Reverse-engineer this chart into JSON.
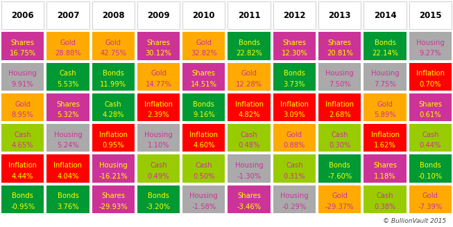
{
  "years": [
    "2006",
    "2007",
    "2008",
    "2009",
    "2010",
    "2011",
    "2012",
    "2013",
    "2014",
    "2015"
  ],
  "table": [
    [
      {
        "label": "Shares",
        "value": "16.75%",
        "bg": "#CC3399",
        "fg": "#FFFF00"
      },
      {
        "label": "Gold",
        "value": "28.88%",
        "bg": "#FFAA00",
        "fg": "#CC3399"
      },
      {
        "label": "Gold",
        "value": "42.75%",
        "bg": "#FFAA00",
        "fg": "#CC3399"
      },
      {
        "label": "Shares",
        "value": "30.12%",
        "bg": "#CC3399",
        "fg": "#FFFF00"
      },
      {
        "label": "Gold",
        "value": "32.82%",
        "bg": "#FFAA00",
        "fg": "#CC3399"
      },
      {
        "label": "Bonds",
        "value": "22.82%",
        "bg": "#009933",
        "fg": "#FFFF00"
      },
      {
        "label": "Shares",
        "value": "12.30%",
        "bg": "#CC3399",
        "fg": "#FFFF00"
      },
      {
        "label": "Shares",
        "value": "20.81%",
        "bg": "#CC3399",
        "fg": "#FFFF00"
      },
      {
        "label": "Bonds",
        "value": "22.14%",
        "bg": "#009933",
        "fg": "#FFFF00"
      },
      {
        "label": "Housing",
        "value": "9.27%",
        "bg": "#AAAAAA",
        "fg": "#CC3399"
      }
    ],
    [
      {
        "label": "Housing",
        "value": "9.91%",
        "bg": "#AAAAAA",
        "fg": "#CC3399"
      },
      {
        "label": "Cash",
        "value": "5.53%",
        "bg": "#009933",
        "fg": "#FFFF00"
      },
      {
        "label": "Bonds",
        "value": "11.99%",
        "bg": "#009933",
        "fg": "#FFFF00"
      },
      {
        "label": "Gold",
        "value": "14.77%",
        "bg": "#FFAA00",
        "fg": "#CC3399"
      },
      {
        "label": "Shares",
        "value": "14.51%",
        "bg": "#CC3399",
        "fg": "#FFFF00"
      },
      {
        "label": "Gold",
        "value": "12.28%",
        "bg": "#FFAA00",
        "fg": "#CC3399"
      },
      {
        "label": "Bonds",
        "value": "3.73%",
        "bg": "#009933",
        "fg": "#FFFF00"
      },
      {
        "label": "Housing",
        "value": "7.50%",
        "bg": "#AAAAAA",
        "fg": "#CC3399"
      },
      {
        "label": "Housing",
        "value": "7.75%",
        "bg": "#AAAAAA",
        "fg": "#CC3399"
      },
      {
        "label": "Inflation",
        "value": "0.70%",
        "bg": "#FF0000",
        "fg": "#FFFF00"
      }
    ],
    [
      {
        "label": "Gold",
        "value": "8.95%",
        "bg": "#FFAA00",
        "fg": "#CC3399"
      },
      {
        "label": "Shares",
        "value": "5.32%",
        "bg": "#CC3399",
        "fg": "#FFFF00"
      },
      {
        "label": "Cash",
        "value": "4.28%",
        "bg": "#009933",
        "fg": "#FFFF00"
      },
      {
        "label": "Inflation",
        "value": "2.39%",
        "bg": "#FF0000",
        "fg": "#FFFF00"
      },
      {
        "label": "Bonds",
        "value": "9.16%",
        "bg": "#009933",
        "fg": "#FFFF00"
      },
      {
        "label": "Inflation",
        "value": "4.82%",
        "bg": "#FF0000",
        "fg": "#FFFF00"
      },
      {
        "label": "Inflation",
        "value": "3.09%",
        "bg": "#FF0000",
        "fg": "#FFFF00"
      },
      {
        "label": "Inflation",
        "value": "2.68%",
        "bg": "#FF0000",
        "fg": "#FFFF00"
      },
      {
        "label": "Gold",
        "value": "5.89%",
        "bg": "#FFAA00",
        "fg": "#CC3399"
      },
      {
        "label": "Shares",
        "value": "0.61%",
        "bg": "#CC3399",
        "fg": "#FFFF00"
      }
    ],
    [
      {
        "label": "Cash",
        "value": "4.65%",
        "bg": "#99CC00",
        "fg": "#CC3399"
      },
      {
        "label": "Housing",
        "value": "5.24%",
        "bg": "#AAAAAA",
        "fg": "#CC3399"
      },
      {
        "label": "Inflation",
        "value": "0.95%",
        "bg": "#FF0000",
        "fg": "#FFFF00"
      },
      {
        "label": "Housing",
        "value": "1.10%",
        "bg": "#AAAAAA",
        "fg": "#CC3399"
      },
      {
        "label": "Inflation",
        "value": "4.60%",
        "bg": "#FF0000",
        "fg": "#FFFF00"
      },
      {
        "label": "Cash",
        "value": "0.48%",
        "bg": "#99CC00",
        "fg": "#CC3399"
      },
      {
        "label": "Gold",
        "value": "0.88%",
        "bg": "#FFAA00",
        "fg": "#CC3399"
      },
      {
        "label": "Cash",
        "value": "0.30%",
        "bg": "#99CC00",
        "fg": "#CC3399"
      },
      {
        "label": "Inflation",
        "value": "1.62%",
        "bg": "#FF0000",
        "fg": "#FFFF00"
      },
      {
        "label": "Cash",
        "value": "0.44%",
        "bg": "#99CC00",
        "fg": "#CC3399"
      }
    ],
    [
      {
        "label": "Inflation",
        "value": "4.44%",
        "bg": "#FF0000",
        "fg": "#FFFF00"
      },
      {
        "label": "Inflation",
        "value": "4.04%",
        "bg": "#FF0000",
        "fg": "#FFFF00"
      },
      {
        "label": "Housing",
        "value": "-16.21%",
        "bg": "#CC3399",
        "fg": "#FFFF00"
      },
      {
        "label": "Cash",
        "value": "0.49%",
        "bg": "#99CC00",
        "fg": "#CC3399"
      },
      {
        "label": "Cash",
        "value": "0.50%",
        "bg": "#99CC00",
        "fg": "#CC3399"
      },
      {
        "label": "Housing",
        "value": "-1.30%",
        "bg": "#AAAAAA",
        "fg": "#CC3399"
      },
      {
        "label": "Cash",
        "value": "0.31%",
        "bg": "#99CC00",
        "fg": "#CC3399"
      },
      {
        "label": "Bonds",
        "value": "-7.60%",
        "bg": "#009933",
        "fg": "#FFFF00"
      },
      {
        "label": "Shares",
        "value": "1.18%",
        "bg": "#CC3399",
        "fg": "#FFFF00"
      },
      {
        "label": "Bonds",
        "value": "-0.10%",
        "bg": "#009933",
        "fg": "#FFFF00"
      }
    ],
    [
      {
        "label": "Bonds",
        "value": "-0.95%",
        "bg": "#009933",
        "fg": "#FFFF00"
      },
      {
        "label": "Bonds",
        "value": "3.76%",
        "bg": "#009933",
        "fg": "#FFFF00"
      },
      {
        "label": "Shares",
        "value": "-29.93%",
        "bg": "#CC3399",
        "fg": "#FFFF00"
      },
      {
        "label": "Bonds",
        "value": "-3.20%",
        "bg": "#009933",
        "fg": "#FFFF00"
      },
      {
        "label": "Housing",
        "value": "-1.58%",
        "bg": "#AAAAAA",
        "fg": "#CC3399"
      },
      {
        "label": "Shares",
        "value": "-3.46%",
        "bg": "#CC3399",
        "fg": "#FFFF00"
      },
      {
        "label": "Housing",
        "value": "-0.29%",
        "bg": "#AAAAAA",
        "fg": "#CC3399"
      },
      {
        "label": "Gold",
        "value": "-29.37%",
        "bg": "#FFAA00",
        "fg": "#CC3399"
      },
      {
        "label": "Cash",
        "value": "0.38%",
        "bg": "#99CC00",
        "fg": "#CC3399"
      },
      {
        "label": "Gold",
        "value": "-7.39%",
        "bg": "#FFAA00",
        "fg": "#CC3399"
      }
    ]
  ],
  "header_bg": "#FFFFFF",
  "header_fg": "#000000",
  "border_color": "#FFFFFF",
  "footer_text": "© BullionVault 2015",
  "footer_color": "#444444",
  "fig_w": 6.53,
  "fig_h": 3.28,
  "dpi": 100
}
